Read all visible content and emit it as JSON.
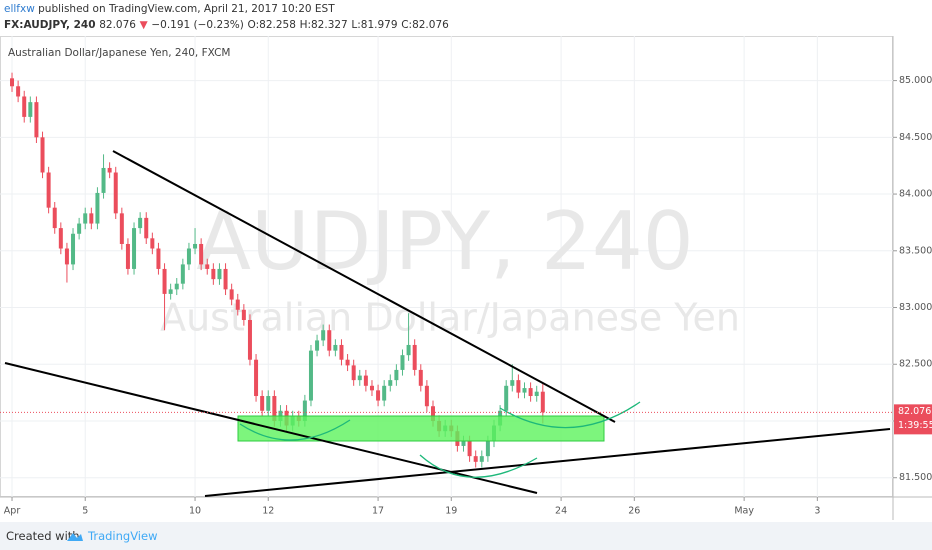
{
  "header": {
    "author": "ellfxw",
    "published": "published on TradingView.com, April 21, 2017 10:20 EST",
    "symbol": "FX:AUDJPY, 240",
    "price": "82.076",
    "arrow": "▼",
    "change": "−0.191 (−0.23%)",
    "ohlc": [
      "O:82.258",
      "H:82.327",
      "L:81.979",
      "C:82.076"
    ]
  },
  "footer": {
    "created_with": "Created with",
    "brand": "TradingView"
  },
  "chart_data": {
    "type": "candlestick",
    "title": "Australian Dollar/Japanese Yen, 240, FXCM",
    "watermark": "AUDJPY, 240",
    "watermark_subtitle": "Australian Dollar/Japanese Yen",
    "up_color": "#53b987",
    "down_color": "#eb4d5c",
    "open": [
      85.02,
      84.95,
      84.86,
      84.68,
      84.81,
      84.5,
      84.19,
      83.88,
      83.7,
      83.52,
      83.38,
      83.65,
      83.74,
      83.83,
      83.74,
      84.01,
      84.23,
      84.19,
      83.83,
      83.56,
      83.34,
      83.7,
      83.79,
      83.61,
      83.52,
      83.34,
      83.12,
      83.16,
      83.21,
      83.38,
      83.52,
      83.56,
      83.38,
      83.34,
      83.25,
      83.34,
      83.16,
      83.07,
      82.98,
      82.89,
      82.54,
      82.22,
      82.09,
      82.22,
      82.0,
      82.09,
      81.96,
      82.04,
      82.0,
      82.18,
      82.62,
      82.71,
      82.8,
      82.62,
      82.67,
      82.54,
      82.49,
      82.36,
      82.4,
      82.31,
      82.27,
      82.18,
      82.31,
      82.36,
      82.45,
      82.58,
      82.67,
      82.45,
      82.31,
      82.13,
      82.0,
      81.91,
      81.96,
      81.91,
      81.78,
      81.82,
      81.69,
      81.64,
      81.69,
      81.82,
      81.96,
      82.09,
      82.31,
      82.36,
      82.25,
      82.29,
      82.22,
      82.258
    ],
    "high": [
      85.07,
      85.0,
      84.91,
      84.86,
      84.86,
      84.55,
      84.24,
      83.93,
      83.75,
      83.57,
      83.7,
      83.79,
      83.88,
      83.88,
      84.06,
      84.35,
      84.28,
      84.24,
      83.88,
      83.61,
      83.75,
      83.84,
      83.84,
      83.66,
      83.57,
      83.39,
      83.21,
      83.26,
      83.43,
      83.57,
      83.7,
      83.61,
      83.43,
      83.39,
      83.39,
      83.39,
      83.21,
      83.12,
      83.03,
      82.94,
      82.59,
      82.27,
      82.27,
      82.27,
      82.14,
      82.14,
      82.09,
      82.09,
      82.23,
      82.67,
      82.76,
      82.85,
      82.85,
      82.72,
      82.72,
      82.59,
      82.54,
      82.45,
      82.45,
      82.36,
      82.32,
      82.36,
      82.41,
      82.5,
      82.63,
      82.95,
      82.72,
      82.5,
      82.36,
      82.18,
      82.05,
      82.01,
      82.01,
      81.96,
      81.87,
      81.87,
      81.74,
      81.74,
      81.87,
      82.01,
      82.14,
      82.36,
      82.5,
      82.41,
      82.34,
      82.34,
      82.31,
      82.327
    ],
    "low": [
      84.9,
      84.81,
      84.63,
      84.63,
      84.45,
      84.14,
      83.83,
      83.65,
      83.47,
      83.22,
      83.33,
      83.6,
      83.69,
      83.69,
      83.69,
      83.96,
      84.14,
      83.78,
      83.51,
      83.29,
      83.29,
      83.65,
      83.56,
      83.47,
      83.29,
      82.8,
      83.07,
      83.11,
      83.16,
      83.33,
      83.47,
      83.33,
      83.29,
      83.2,
      83.2,
      83.11,
      83.02,
      82.93,
      82.84,
      82.49,
      82.17,
      82.04,
      82.04,
      81.95,
      81.95,
      81.91,
      81.91,
      81.95,
      81.95,
      82.13,
      82.57,
      82.66,
      82.57,
      82.57,
      82.49,
      82.44,
      82.31,
      82.31,
      82.26,
      82.22,
      82.13,
      82.13,
      82.26,
      82.31,
      82.4,
      82.53,
      82.4,
      82.26,
      82.08,
      81.95,
      81.86,
      81.86,
      81.86,
      81.73,
      81.73,
      81.64,
      81.59,
      81.59,
      81.64,
      81.77,
      81.91,
      82.04,
      82.26,
      82.2,
      82.2,
      82.17,
      82.17,
      81.979
    ],
    "close": [
      84.95,
      84.86,
      84.68,
      84.81,
      84.5,
      84.19,
      83.88,
      83.7,
      83.52,
      83.38,
      83.65,
      83.74,
      83.83,
      83.74,
      84.01,
      84.23,
      84.19,
      83.83,
      83.56,
      83.34,
      83.7,
      83.79,
      83.61,
      83.52,
      83.34,
      83.12,
      83.16,
      83.21,
      83.38,
      83.52,
      83.56,
      83.38,
      83.34,
      83.25,
      83.34,
      83.16,
      83.07,
      82.98,
      82.89,
      82.54,
      82.22,
      82.09,
      82.22,
      82.0,
      82.09,
      81.96,
      82.04,
      82.0,
      82.18,
      82.62,
      82.71,
      82.8,
      82.62,
      82.67,
      82.54,
      82.49,
      82.36,
      82.4,
      82.31,
      82.27,
      82.18,
      82.31,
      82.36,
      82.45,
      82.58,
      82.67,
      82.45,
      82.31,
      82.13,
      82.0,
      81.91,
      81.96,
      81.91,
      81.78,
      81.82,
      81.69,
      81.64,
      81.69,
      81.82,
      81.96,
      82.09,
      82.31,
      82.36,
      82.25,
      82.29,
      82.22,
      82.258,
      82.076
    ],
    "last_price": 82.076,
    "countdown": "1:39:55",
    "last_color": "#eb4d5c",
    "xlim": [
      -1.97,
      144.4
    ],
    "xticks": [
      {
        "value": 0,
        "label": "Apr"
      },
      {
        "value": 12,
        "label": "5"
      },
      {
        "value": 30,
        "label": "10"
      },
      {
        "value": 42,
        "label": "12"
      },
      {
        "value": 60,
        "label": "17"
      },
      {
        "value": 72,
        "label": "19"
      },
      {
        "value": 90,
        "label": "24"
      },
      {
        "value": 102,
        "label": "26"
      },
      {
        "value": 120,
        "label": "May"
      },
      {
        "value": 132,
        "label": "3"
      }
    ],
    "ylim": [
      81.33,
      85.393
    ],
    "yticks": [
      {
        "value": 81.5,
        "label": "81.500"
      },
      {
        "value": 82,
        "label": "82.000"
      },
      {
        "value": 82.5,
        "label": "82.500"
      },
      {
        "value": 83,
        "label": "83.000"
      },
      {
        "value": 83.5,
        "label": "83.500"
      },
      {
        "value": 84,
        "label": "84.000"
      },
      {
        "value": 84.5,
        "label": "84.500"
      },
      {
        "value": 85,
        "label": "85.000"
      }
    ],
    "grid": true
  }
}
